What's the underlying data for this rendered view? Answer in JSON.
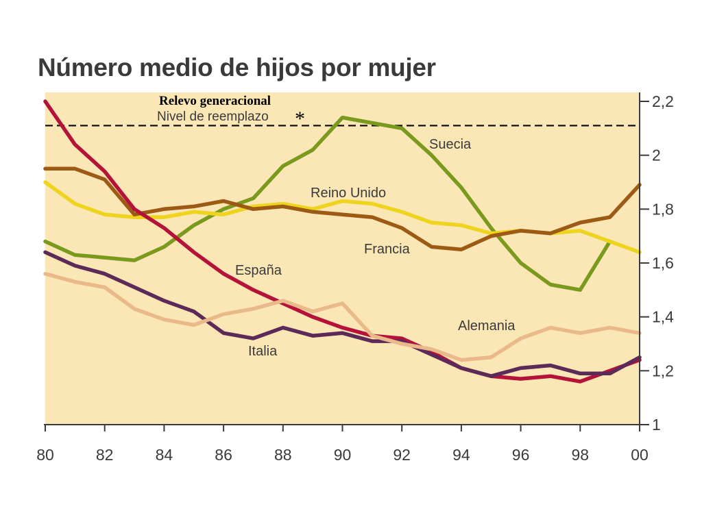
{
  "chart_data": {
    "type": "line",
    "title": "Número medio de hijos por mujer",
    "xlabel": "",
    "ylabel": "",
    "xlim": [
      80,
      100
    ],
    "ylim": [
      1,
      2.2
    ],
    "x_ticks": [
      "80",
      "82",
      "84",
      "86",
      "88",
      "90",
      "92",
      "94",
      "96",
      "98",
      "00"
    ],
    "y_ticks": [
      "1",
      "1,2",
      "1,4",
      "1,6",
      "1,8",
      "2",
      "2,2"
    ],
    "grid": false,
    "plot_background": "#fbe7b5",
    "reference_line": {
      "value": 2.11,
      "label": "Nivel de reemplazo",
      "marker": "*",
      "caption": "Relevo generacional",
      "style": "dashed",
      "color": "#111111"
    },
    "x": [
      80,
      81,
      82,
      83,
      84,
      85,
      86,
      87,
      88,
      89,
      90,
      91,
      92,
      93,
      94,
      95,
      96,
      97,
      98,
      99,
      100
    ],
    "series": [
      {
        "name": "Suecia",
        "color": "#7a9a1e",
        "values": [
          1.68,
          1.63,
          1.62,
          1.61,
          1.66,
          1.74,
          1.8,
          1.84,
          1.96,
          2.02,
          2.14,
          2.12,
          2.1,
          2.0,
          1.88,
          1.73,
          1.6,
          1.52,
          1.5,
          1.68,
          null
        ]
      },
      {
        "name": "Reino Unido",
        "color": "#eed41e",
        "values": [
          1.9,
          1.82,
          1.78,
          1.77,
          1.77,
          1.79,
          1.78,
          1.81,
          1.82,
          1.8,
          1.83,
          1.82,
          1.79,
          1.75,
          1.74,
          1.71,
          1.72,
          1.71,
          1.72,
          1.68,
          1.64
        ]
      },
      {
        "name": "Francia",
        "color": "#9c5a14",
        "values": [
          1.95,
          1.95,
          1.91,
          1.78,
          1.8,
          1.81,
          1.83,
          1.8,
          1.81,
          1.79,
          1.78,
          1.77,
          1.73,
          1.66,
          1.65,
          1.7,
          1.72,
          1.71,
          1.75,
          1.77,
          1.89
        ]
      },
      {
        "name": "España",
        "color": "#b5123a",
        "values": [
          2.2,
          2.04,
          1.94,
          1.8,
          1.73,
          1.64,
          1.56,
          1.5,
          1.45,
          1.4,
          1.36,
          1.33,
          1.32,
          1.27,
          1.21,
          1.18,
          1.17,
          1.18,
          1.16,
          1.2,
          1.24
        ]
      },
      {
        "name": "Italia",
        "color": "#5b2a58",
        "values": [
          1.64,
          1.59,
          1.56,
          1.51,
          1.46,
          1.42,
          1.34,
          1.32,
          1.36,
          1.33,
          1.34,
          1.31,
          1.31,
          1.26,
          1.21,
          1.18,
          1.21,
          1.22,
          1.19,
          1.19,
          1.25
        ]
      },
      {
        "name": "Alemania",
        "color": "#eab98a",
        "values": [
          1.56,
          1.53,
          1.51,
          1.43,
          1.39,
          1.37,
          1.41,
          1.43,
          1.46,
          1.42,
          1.45,
          1.33,
          1.3,
          1.28,
          1.24,
          1.25,
          1.32,
          1.36,
          1.34,
          1.36,
          1.34
        ]
      }
    ],
    "labels": {
      "suecia": "Suecia",
      "reino_unido": "Reino Unido",
      "francia": "Francia",
      "espana": "España",
      "italia": "Italia",
      "alemania": "Alemania"
    }
  }
}
